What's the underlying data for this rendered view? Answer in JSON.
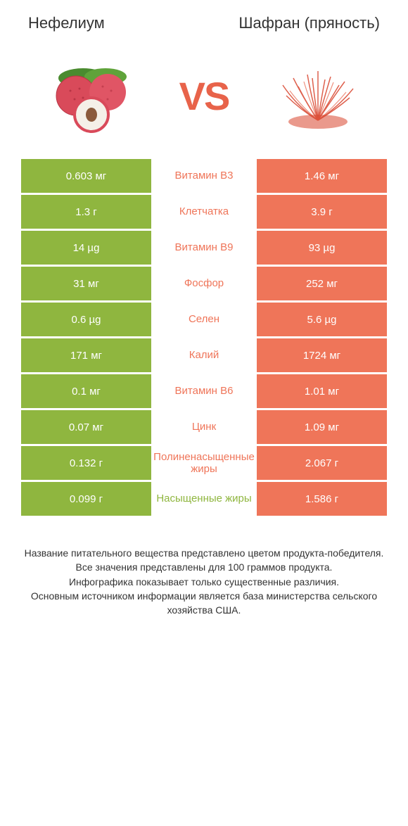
{
  "header": {
    "left_title": "Нефелиум",
    "right_title": "Шафран (пряность)",
    "vs_label": "VS"
  },
  "colors": {
    "left_bar": "#8fb63f",
    "right_bar": "#ef7559",
    "nutrient_left_win": "#8fb63f",
    "nutrient_right_win": "#ef7559",
    "vs_text": "#e8634a",
    "footer_text": "#333333",
    "background": "#ffffff"
  },
  "typography": {
    "title_fontsize": 22,
    "vs_fontsize": 56,
    "cell_fontsize": 15,
    "nutrient_fontsize": 15,
    "footer_fontsize": 14
  },
  "table": {
    "rows": [
      {
        "left": "0.603 мг",
        "nutrient": "Витамин B3",
        "right": "1.46 мг",
        "winner": "right"
      },
      {
        "left": "1.3 г",
        "nutrient": "Клетчатка",
        "right": "3.9 г",
        "winner": "right"
      },
      {
        "left": "14 µg",
        "nutrient": "Витамин B9",
        "right": "93 µg",
        "winner": "right"
      },
      {
        "left": "31 мг",
        "nutrient": "Фосфор",
        "right": "252 мг",
        "winner": "right"
      },
      {
        "left": "0.6 µg",
        "nutrient": "Селен",
        "right": "5.6 µg",
        "winner": "right"
      },
      {
        "left": "171 мг",
        "nutrient": "Калий",
        "right": "1724 мг",
        "winner": "right"
      },
      {
        "left": "0.1 мг",
        "nutrient": "Витамин B6",
        "right": "1.01 мг",
        "winner": "right"
      },
      {
        "left": "0.07 мг",
        "nutrient": "Цинк",
        "right": "1.09 мг",
        "winner": "right"
      },
      {
        "left": "0.132 г",
        "nutrient": "Полиненасыщенные жиры",
        "right": "2.067 г",
        "winner": "right"
      },
      {
        "left": "0.099 г",
        "nutrient": "Насыщенные жиры",
        "right": "1.586 г",
        "winner": "left"
      }
    ]
  },
  "footer": {
    "line1": "Название питательного вещества представлено цветом продукта-победителя.",
    "line2": "Все значения представлены для 100 граммов продукта.",
    "line3": "Инфографика показывает только существенные различия.",
    "line4": "Основным источником информации является база министерства сельского хозяйства США."
  }
}
